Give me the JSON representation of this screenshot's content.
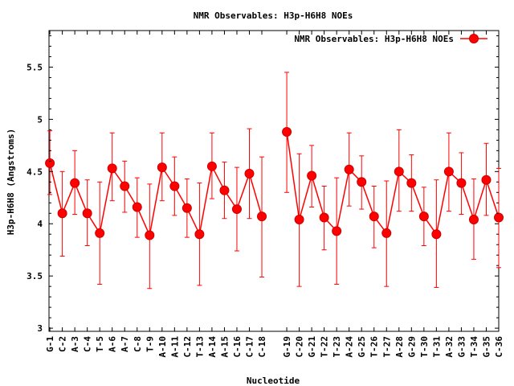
{
  "chart_data": {
    "type": "line",
    "title": "NMR Observables: H3p-H6H8 NOEs",
    "xlabel": "Nucleotide",
    "ylabel": "H3p-H6H8 (Angstroms)",
    "ylim": [
      2.97,
      5.85
    ],
    "yticks": [
      "3",
      "3.5",
      "4",
      "4.5",
      "5",
      "5.5"
    ],
    "grid": false,
    "legend_position": "top-right",
    "series": [
      {
        "name": "NMR Observables: H3p-H6H8 NOEs",
        "color": "#ff0000",
        "points": [
          {
            "x": 1,
            "label": "G-1",
            "y": 4.58,
            "err_low": 4.28,
            "err_high": 4.89
          },
          {
            "x": 2,
            "label": "C-2",
            "y": 4.1,
            "err_low": 3.69,
            "err_high": 4.5
          },
          {
            "x": 3,
            "label": "A-3",
            "y": 4.39,
            "err_low": 4.09,
            "err_high": 4.7
          },
          {
            "x": 4,
            "label": "C-4",
            "y": 4.1,
            "err_low": 3.79,
            "err_high": 4.42
          },
          {
            "x": 5,
            "label": "T-5",
            "y": 3.91,
            "err_low": 3.42,
            "err_high": 4.4
          },
          {
            "x": 6,
            "label": "A-6",
            "y": 4.53,
            "err_low": 4.22,
            "err_high": 4.87
          },
          {
            "x": 7,
            "label": "A-7",
            "y": 4.36,
            "err_low": 4.11,
            "err_high": 4.6
          },
          {
            "x": 8,
            "label": "C-8",
            "y": 4.16,
            "err_low": 3.87,
            "err_high": 4.44
          },
          {
            "x": 9,
            "label": "T-9",
            "y": 3.89,
            "err_low": 3.38,
            "err_high": 4.38
          },
          {
            "x": 10,
            "label": "A-10",
            "y": 4.54,
            "err_low": 4.22,
            "err_high": 4.87
          },
          {
            "x": 11,
            "label": "A-11",
            "y": 4.36,
            "err_low": 4.08,
            "err_high": 4.64
          },
          {
            "x": 12,
            "label": "C-12",
            "y": 4.15,
            "err_low": 3.87,
            "err_high": 4.43
          },
          {
            "x": 13,
            "label": "T-13",
            "y": 3.9,
            "err_low": 3.41,
            "err_high": 4.39
          },
          {
            "x": 14,
            "label": "A-14",
            "y": 4.55,
            "err_low": 4.24,
            "err_high": 4.87
          },
          {
            "x": 15,
            "label": "A-15",
            "y": 4.32,
            "err_low": 4.05,
            "err_high": 4.59
          },
          {
            "x": 16,
            "label": "C-16",
            "y": 4.14,
            "err_low": 3.74,
            "err_high": 4.54
          },
          {
            "x": 17,
            "label": "C-17",
            "y": 4.48,
            "err_low": 4.05,
            "err_high": 4.91
          },
          {
            "x": 18,
            "label": "C-18",
            "y": 4.07,
            "err_low": 3.49,
            "err_high": 4.64
          },
          {
            "x": 20,
            "label": "G-19",
            "y": 4.88,
            "err_low": 4.3,
            "err_high": 5.45
          },
          {
            "x": 21,
            "label": "C-20",
            "y": 4.04,
            "err_low": 3.4,
            "err_high": 4.67
          },
          {
            "x": 22,
            "label": "G-21",
            "y": 4.46,
            "err_low": 4.16,
            "err_high": 4.75
          },
          {
            "x": 23,
            "label": "T-22",
            "y": 4.06,
            "err_low": 3.75,
            "err_high": 4.36
          },
          {
            "x": 24,
            "label": "T-23",
            "y": 3.93,
            "err_low": 3.42,
            "err_high": 4.44
          },
          {
            "x": 25,
            "label": "A-24",
            "y": 4.52,
            "err_low": 4.17,
            "err_high": 4.87
          },
          {
            "x": 26,
            "label": "G-25",
            "y": 4.4,
            "err_low": 4.14,
            "err_high": 4.65
          },
          {
            "x": 27,
            "label": "T-26",
            "y": 4.07,
            "err_low": 3.77,
            "err_high": 4.36
          },
          {
            "x": 28,
            "label": "T-27",
            "y": 3.91,
            "err_low": 3.4,
            "err_high": 4.41
          },
          {
            "x": 29,
            "label": "A-28",
            "y": 4.5,
            "err_low": 4.12,
            "err_high": 4.9
          },
          {
            "x": 30,
            "label": "G-29",
            "y": 4.39,
            "err_low": 4.12,
            "err_high": 4.66
          },
          {
            "x": 31,
            "label": "T-30",
            "y": 4.07,
            "err_low": 3.79,
            "err_high": 4.35
          },
          {
            "x": 32,
            "label": "T-31",
            "y": 3.9,
            "err_low": 3.39,
            "err_high": 4.42
          },
          {
            "x": 33,
            "label": "A-32",
            "y": 4.5,
            "err_low": 4.12,
            "err_high": 4.87
          },
          {
            "x": 34,
            "label": "G-33",
            "y": 4.39,
            "err_low": 4.09,
            "err_high": 4.68
          },
          {
            "x": 35,
            "label": "T-34",
            "y": 4.04,
            "err_low": 3.66,
            "err_high": 4.43
          },
          {
            "x": 36,
            "label": "G-35",
            "y": 4.42,
            "err_low": 4.08,
            "err_high": 4.77
          },
          {
            "x": 37,
            "label": "C-36",
            "y": 4.06,
            "err_low": 3.58,
            "err_high": 4.53
          }
        ]
      }
    ]
  }
}
